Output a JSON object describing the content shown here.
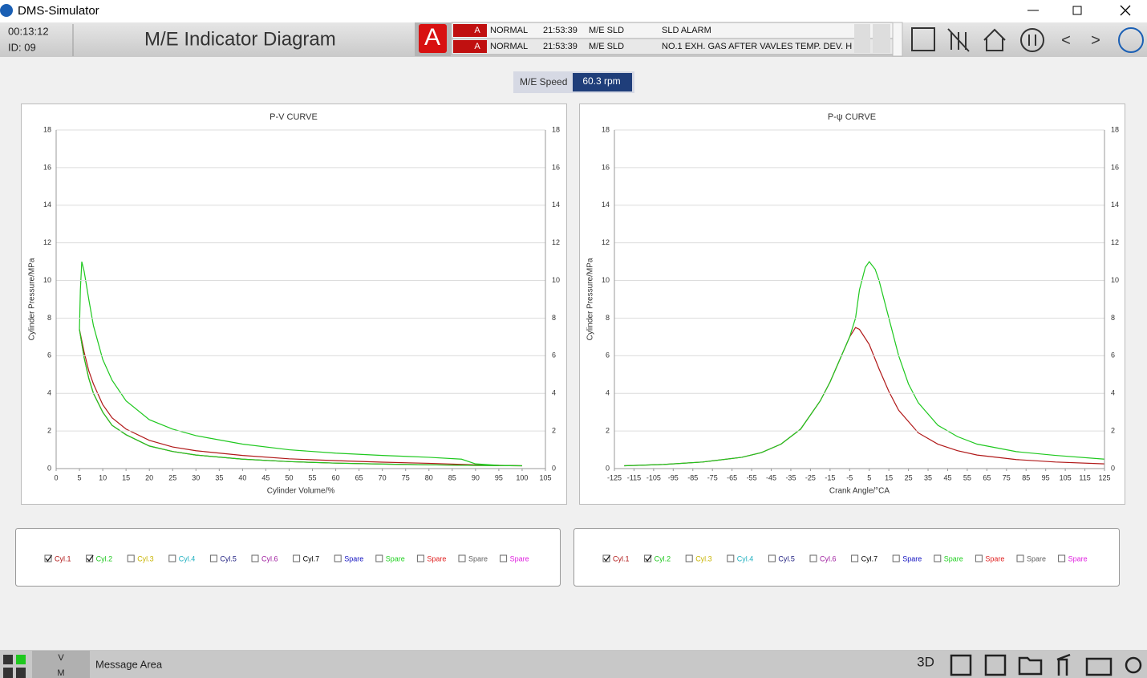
{
  "window": {
    "title": "DMS-Simulator"
  },
  "header": {
    "time": "00:13:12",
    "id": "ID:  09",
    "title": "M/E Indicator Diagram",
    "alarm_indicator": "A",
    "alarms": [
      {
        "flag": "A",
        "status": "NORMAL",
        "time": "21:53:39",
        "source": "M/E SLD",
        "message": "SLD ALARM"
      },
      {
        "flag": "A",
        "status": "NORMAL",
        "time": "21:53:39",
        "source": "M/E SLD",
        "message": "NO.1 EXH. GAS AFTER VAVLES TEMP. DEV. H"
      }
    ],
    "nav": {
      "prev": "<",
      "next": ">"
    }
  },
  "speed": {
    "label": "M/E Speed",
    "value": "60.3 rpm"
  },
  "footer": {
    "v": "V",
    "m": "M",
    "message": "Message Area",
    "three_d": "3D"
  },
  "chart_data": [
    {
      "type": "line",
      "title": "P-V CURVE",
      "x_label": "Cylinder Volume/%",
      "y_label": "Cylinder Pressure/MPa",
      "xlim": [
        0,
        105
      ],
      "xticks": [
        0,
        5,
        10,
        15,
        20,
        25,
        30,
        35,
        40,
        45,
        50,
        55,
        60,
        65,
        70,
        75,
        80,
        85,
        90,
        95,
        100,
        105
      ],
      "ylim": [
        0,
        18
      ],
      "yticks": [
        0,
        2,
        4,
        6,
        8,
        10,
        12,
        14,
        16,
        18
      ],
      "grid": true,
      "series": [
        {
          "name": "Cyl.1",
          "color": "#b01818",
          "checked": true,
          "x": [
            100,
            90,
            80,
            70,
            60,
            50,
            40,
            30,
            25,
            20,
            15,
            12,
            10,
            8,
            7,
            6,
            5,
            6,
            7,
            8,
            10,
            12,
            15,
            20,
            25,
            30,
            40,
            50,
            60,
            70,
            80,
            90,
            100
          ],
          "y": [
            0.15,
            0.17,
            0.2,
            0.24,
            0.29,
            0.37,
            0.5,
            0.72,
            0.91,
            1.2,
            1.8,
            2.3,
            3.0,
            4.0,
            4.8,
            5.9,
            7.4,
            6.2,
            5.2,
            4.5,
            3.4,
            2.7,
            2.1,
            1.5,
            1.15,
            0.95,
            0.7,
            0.52,
            0.42,
            0.34,
            0.28,
            0.2,
            0.15
          ]
        },
        {
          "name": "Cyl.2",
          "color": "#1ec81e",
          "checked": true,
          "x": [
            100,
            90,
            80,
            70,
            60,
            50,
            40,
            30,
            25,
            20,
            15,
            12,
            10,
            8,
            7,
            6,
            5,
            5.2,
            5.5,
            6,
            7,
            8,
            10,
            12,
            15,
            20,
            25,
            30,
            40,
            50,
            60,
            70,
            80,
            87,
            90,
            95,
            100
          ],
          "y": [
            0.15,
            0.17,
            0.2,
            0.24,
            0.29,
            0.37,
            0.5,
            0.72,
            0.91,
            1.2,
            1.8,
            2.3,
            3.0,
            4.0,
            4.8,
            5.9,
            7.4,
            9.5,
            11.0,
            10.5,
            9.0,
            7.6,
            5.8,
            4.7,
            3.6,
            2.6,
            2.1,
            1.75,
            1.3,
            1.0,
            0.82,
            0.7,
            0.6,
            0.5,
            0.25,
            0.17,
            0.15
          ]
        },
        {
          "name": "Cyl.3",
          "color": "#c8b400",
          "checked": false,
          "x": [],
          "y": []
        },
        {
          "name": "Cyl.4",
          "color": "#20b0c0",
          "checked": false,
          "x": [],
          "y": []
        },
        {
          "name": "Cyl.5",
          "color": "#202080",
          "checked": false,
          "x": [],
          "y": []
        },
        {
          "name": "Cyl.6",
          "color": "#a020a0",
          "checked": false,
          "x": [],
          "y": []
        },
        {
          "name": "Cyl.7",
          "color": "#000000",
          "checked": false,
          "x": [],
          "y": []
        },
        {
          "name": "Spare",
          "color": "#1010c0",
          "checked": false,
          "x": [],
          "y": []
        },
        {
          "name": "Spare",
          "color": "#20d020",
          "checked": false,
          "x": [],
          "y": []
        },
        {
          "name": "Spare",
          "color": "#e02020",
          "checked": false,
          "x": [],
          "y": []
        },
        {
          "name": "Spare",
          "color": "#606060",
          "checked": false,
          "x": [],
          "y": []
        },
        {
          "name": "Spare",
          "color": "#e020e0",
          "checked": false,
          "x": [],
          "y": []
        }
      ]
    },
    {
      "type": "line",
      "title": "P-ψ CURVE",
      "x_label": "Crank Angle/°CA",
      "y_label": "Cylinder Pressure/MPa",
      "xlim": [
        -125,
        125
      ],
      "xticks": [
        -125,
        -115,
        -105,
        -95,
        -85,
        -75,
        -65,
        -55,
        -45,
        -35,
        -25,
        -15,
        -5,
        5,
        15,
        25,
        35,
        45,
        55,
        65,
        75,
        85,
        95,
        105,
        115,
        125
      ],
      "ylim": [
        0,
        18
      ],
      "yticks": [
        0,
        2,
        4,
        6,
        8,
        10,
        12,
        14,
        16,
        18
      ],
      "grid": true,
      "series": [
        {
          "name": "Cyl.1",
          "color": "#b01818",
          "checked": true,
          "x": [
            -120,
            -100,
            -80,
            -60,
            -50,
            -40,
            -30,
            -20,
            -15,
            -10,
            -5,
            -2,
            0,
            5,
            10,
            15,
            20,
            30,
            40,
            50,
            60,
            80,
            100,
            125
          ],
          "y": [
            0.15,
            0.22,
            0.35,
            0.6,
            0.85,
            1.3,
            2.1,
            3.6,
            4.6,
            5.8,
            7.0,
            7.5,
            7.4,
            6.6,
            5.3,
            4.1,
            3.1,
            1.9,
            1.3,
            0.95,
            0.72,
            0.48,
            0.35,
            0.25
          ]
        },
        {
          "name": "Cyl.2",
          "color": "#1ec81e",
          "checked": true,
          "x": [
            -120,
            -100,
            -80,
            -60,
            -50,
            -40,
            -30,
            -20,
            -15,
            -10,
            -5,
            -2,
            0,
            3,
            5,
            8,
            10,
            15,
            20,
            25,
            30,
            40,
            50,
            60,
            80,
            100,
            125
          ],
          "y": [
            0.15,
            0.22,
            0.35,
            0.6,
            0.85,
            1.3,
            2.1,
            3.6,
            4.6,
            5.8,
            7.0,
            8.0,
            9.5,
            10.7,
            11.0,
            10.6,
            10.0,
            8.0,
            6.0,
            4.5,
            3.5,
            2.3,
            1.7,
            1.3,
            0.9,
            0.7,
            0.5
          ]
        },
        {
          "name": "Cyl.3",
          "color": "#c8b400",
          "checked": false,
          "x": [],
          "y": []
        },
        {
          "name": "Cyl.4",
          "color": "#20b0c0",
          "checked": false,
          "x": [],
          "y": []
        },
        {
          "name": "Cyl.5",
          "color": "#202080",
          "checked": false,
          "x": [],
          "y": []
        },
        {
          "name": "Cyl.6",
          "color": "#a020a0",
          "checked": false,
          "x": [],
          "y": []
        },
        {
          "name": "Cyl.7",
          "color": "#000000",
          "checked": false,
          "x": [],
          "y": []
        },
        {
          "name": "Spare",
          "color": "#1010c0",
          "checked": false,
          "x": [],
          "y": []
        },
        {
          "name": "Spare",
          "color": "#20d020",
          "checked": false,
          "x": [],
          "y": []
        },
        {
          "name": "Spare",
          "color": "#e02020",
          "checked": false,
          "x": [],
          "y": []
        },
        {
          "name": "Spare",
          "color": "#606060",
          "checked": false,
          "x": [],
          "y": []
        },
        {
          "name": "Spare",
          "color": "#e020e0",
          "checked": false,
          "x": [],
          "y": []
        }
      ]
    }
  ]
}
